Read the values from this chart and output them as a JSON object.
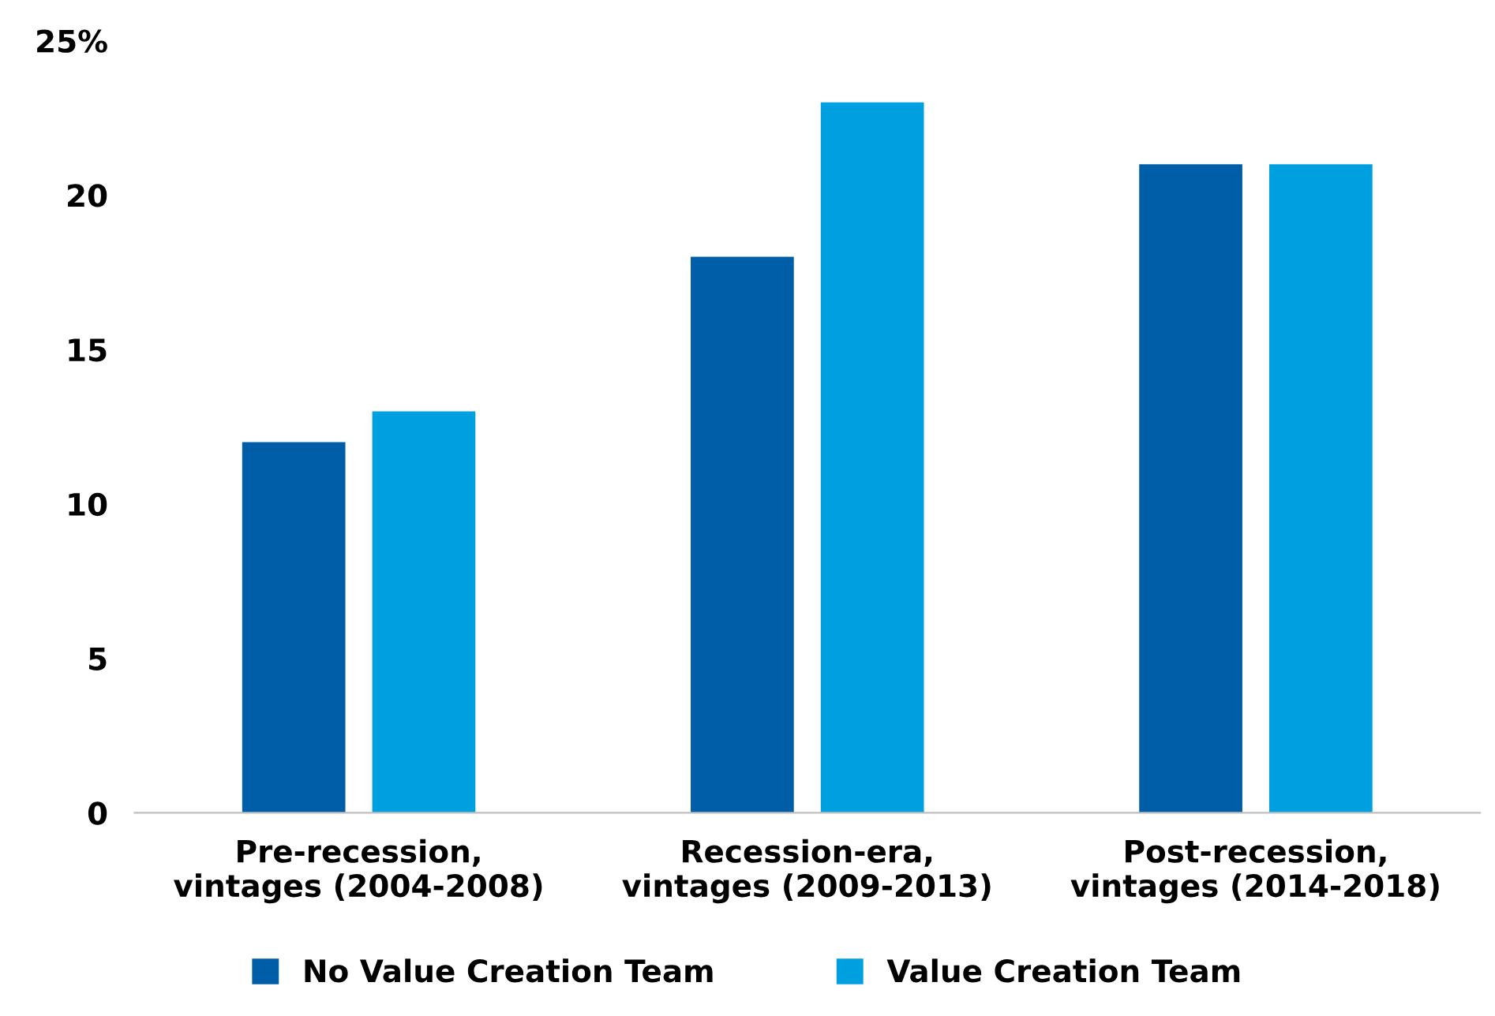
{
  "chart_data": {
    "type": "bar",
    "categories": [
      "Pre-recession,\nvintages (2004-2008)",
      "Recession-era,\nvintages (2009-2013)",
      "Post-recession,\nvintages (2014-2018)"
    ],
    "series": [
      {
        "name": "No Value Creation Team",
        "color": "#005ea8",
        "values": [
          12,
          18,
          21
        ]
      },
      {
        "name": "Value Creation Team",
        "color": "#00a0e0",
        "values": [
          13,
          23,
          21
        ]
      }
    ],
    "ylim": [
      0,
      25
    ],
    "yticks": [
      0,
      5,
      10,
      15,
      20,
      {
        "value": 25,
        "label": "25%"
      }
    ],
    "grid": false,
    "legend": "bottom"
  }
}
